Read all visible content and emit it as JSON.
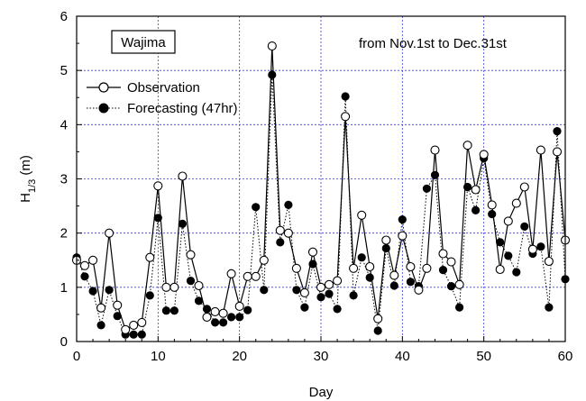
{
  "chart_data": {
    "type": "line",
    "xlabel": "Day",
    "ylabel_main": "H",
    "ylabel_sub": "1/3",
    "ylabel_unit": " (m)",
    "xlim": [
      0,
      60
    ],
    "ylim": [
      0,
      6
    ],
    "xticks": [
      0,
      10,
      20,
      30,
      40,
      50,
      60
    ],
    "yticks": [
      0,
      1,
      2,
      3,
      4,
      5,
      6
    ],
    "grid": true,
    "legend_position": "top-left",
    "annotations": {
      "station": "Wajima",
      "period": "from Nov.1st to Dec.31st"
    },
    "series": [
      {
        "name": "Observation",
        "line_style": "solid",
        "marker": "open-circle",
        "color": "#000000",
        "x": [
          0,
          1,
          2,
          3,
          4,
          5,
          6,
          7,
          8,
          9,
          10,
          11,
          12,
          13,
          14,
          15,
          16,
          17,
          18,
          19,
          20,
          21,
          22,
          23,
          24,
          25,
          26,
          27,
          28,
          29,
          30,
          31,
          32,
          33,
          34,
          35,
          36,
          37,
          38,
          39,
          40,
          41,
          42,
          43,
          44,
          45,
          46,
          47,
          48,
          49,
          50,
          51,
          52,
          53,
          54,
          55,
          56,
          57,
          58,
          59,
          60
        ],
        "values": [
          1.5,
          1.4,
          1.5,
          0.62,
          2.0,
          0.67,
          0.22,
          0.3,
          0.35,
          1.55,
          2.87,
          1.0,
          1.0,
          3.05,
          1.6,
          1.03,
          0.45,
          0.55,
          0.52,
          1.25,
          0.65,
          1.2,
          1.2,
          1.5,
          5.45,
          2.05,
          2.0,
          1.35,
          0.9,
          1.65,
          1.0,
          1.05,
          1.12,
          4.15,
          1.35,
          2.33,
          1.38,
          0.42,
          1.87,
          1.22,
          1.95,
          1.38,
          0.95,
          1.35,
          3.53,
          1.62,
          1.47,
          1.05,
          3.62,
          2.8,
          3.45,
          2.52,
          1.33,
          2.22,
          2.55,
          2.85,
          1.7,
          3.53,
          1.48,
          3.5,
          1.87
        ]
      },
      {
        "name": "Forecasting (47hr)",
        "line_style": "dotted",
        "marker": "filled-circle",
        "color": "#000000",
        "x": [
          0,
          1,
          2,
          3,
          4,
          5,
          6,
          7,
          8,
          9,
          10,
          11,
          12,
          13,
          14,
          15,
          16,
          17,
          18,
          19,
          20,
          21,
          22,
          23,
          24,
          25,
          26,
          27,
          28,
          29,
          30,
          31,
          32,
          33,
          34,
          35,
          36,
          37,
          38,
          39,
          40,
          41,
          42,
          43,
          44,
          45,
          46,
          47,
          48,
          49,
          50,
          51,
          52,
          53,
          54,
          55,
          56,
          57,
          58,
          59,
          60
        ],
        "values": [
          1.55,
          1.2,
          0.93,
          0.3,
          0.95,
          0.47,
          0.13,
          0.13,
          0.13,
          0.85,
          2.28,
          0.57,
          0.57,
          2.17,
          1.12,
          0.75,
          0.6,
          0.35,
          0.35,
          0.45,
          0.45,
          0.58,
          2.48,
          0.95,
          4.92,
          1.83,
          2.52,
          0.95,
          0.63,
          1.43,
          0.82,
          0.88,
          0.6,
          4.52,
          0.85,
          1.55,
          1.18,
          0.2,
          1.72,
          1.03,
          2.25,
          1.1,
          1.02,
          2.82,
          3.07,
          1.32,
          1.02,
          0.63,
          2.85,
          2.42,
          3.38,
          2.35,
          1.83,
          1.58,
          1.28,
          2.12,
          1.62,
          1.75,
          0.63,
          3.88,
          1.15
        ]
      }
    ]
  }
}
